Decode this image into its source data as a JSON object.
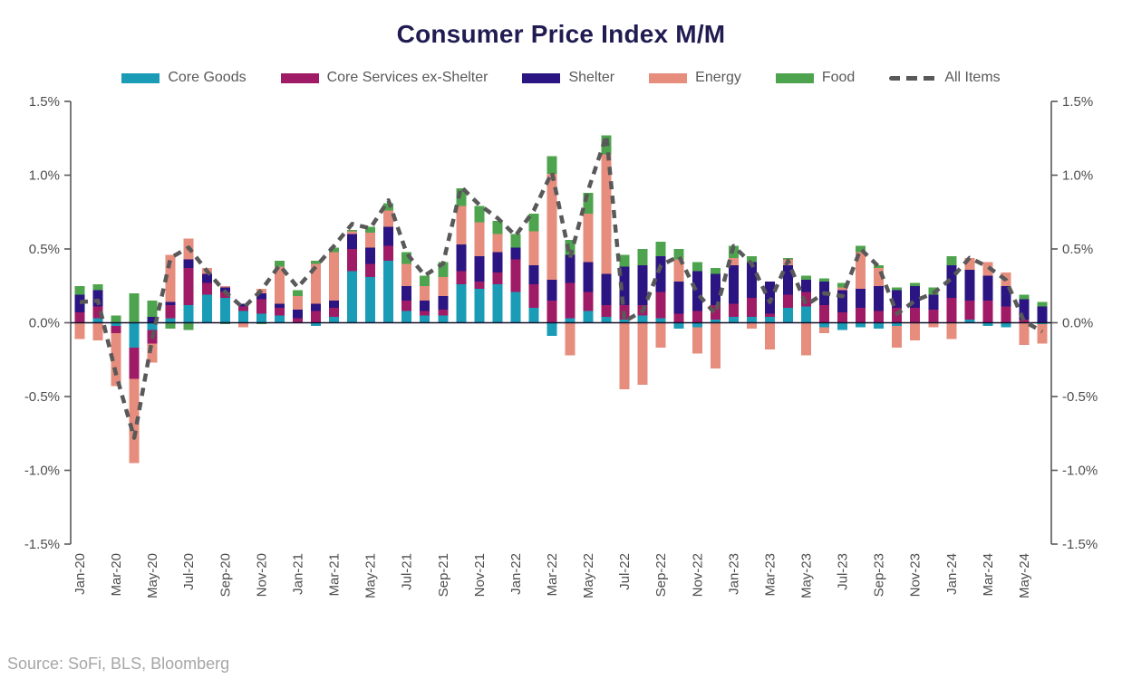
{
  "title": "Consumer Price Index M/M",
  "source": "Source: SoFi, BLS, Bloomberg",
  "legend": {
    "items": [
      {
        "label": "Core Goods",
        "color": "#1a9cb7"
      },
      {
        "label": "Core Services ex-Shelter",
        "color": "#a01b66"
      },
      {
        "label": "Shelter",
        "color": "#2b1582"
      },
      {
        "label": "Energy",
        "color": "#e68d7e"
      },
      {
        "label": "Food",
        "color": "#4ea44e"
      },
      {
        "label": "All Items",
        "color": "#595959",
        "style": "dashed-line"
      }
    ]
  },
  "chart_data": {
    "type": "bar",
    "subtype": "stacked-bars-with-dashed-line-overlay",
    "title": "Consumer Price Index M/M",
    "xlabel": "",
    "ylabel": "",
    "ylim": [
      -1.5,
      1.5
    ],
    "ytick_step": 0.5,
    "ytick_labels": [
      "1.5%",
      "1.0%",
      "0.5%",
      "0.0%",
      "-0.5%",
      "-1.0%",
      "-1.5%"
    ],
    "grid": false,
    "legend_position": "top",
    "x_labels_shown_every": 2,
    "categories": [
      "Jan-20",
      "Feb-20",
      "Mar-20",
      "Apr-20",
      "May-20",
      "Jun-20",
      "Jul-20",
      "Aug-20",
      "Sep-20",
      "Oct-20",
      "Nov-20",
      "Dec-20",
      "Jan-21",
      "Feb-21",
      "Mar-21",
      "Apr-21",
      "May-21",
      "Jun-21",
      "Jul-21",
      "Aug-21",
      "Sep-21",
      "Oct-21",
      "Nov-21",
      "Dec-21",
      "Jan-22",
      "Feb-22",
      "Mar-22",
      "Apr-22",
      "May-22",
      "Jun-22",
      "Jul-22",
      "Aug-22",
      "Sep-22",
      "Oct-22",
      "Nov-22",
      "Dec-22",
      "Jan-23",
      "Feb-23",
      "Mar-23",
      "Apr-23",
      "May-23",
      "Jun-23",
      "Jul-23",
      "Aug-23",
      "Sep-23",
      "Oct-23",
      "Nov-23",
      "Dec-23",
      "Jan-24",
      "Feb-24",
      "Mar-24",
      "Apr-24",
      "May-24",
      "Jun-24"
    ],
    "series": [
      {
        "name": "Core Goods",
        "color": "#1a9cb7",
        "values": [
          0.0,
          0.03,
          -0.02,
          -0.17,
          -0.05,
          0.03,
          0.12,
          0.19,
          0.17,
          0.08,
          0.06,
          0.05,
          0.0,
          -0.02,
          0.04,
          0.35,
          0.31,
          0.42,
          0.08,
          0.05,
          0.05,
          0.26,
          0.23,
          0.26,
          0.21,
          0.1,
          -0.09,
          0.03,
          0.08,
          0.04,
          0.02,
          0.05,
          0.03,
          -0.04,
          -0.03,
          0.02,
          0.04,
          0.04,
          0.04,
          0.1,
          0.11,
          -0.03,
          -0.05,
          -0.03,
          -0.04,
          -0.02,
          0.0,
          0.0,
          0.0,
          0.02,
          -0.02,
          -0.03,
          0.0,
          -0.01
        ]
      },
      {
        "name": "Core Services ex-Shelter",
        "color": "#a01b66",
        "values": [
          0.07,
          0.08,
          -0.05,
          -0.21,
          -0.09,
          0.09,
          0.25,
          0.08,
          0.04,
          0.03,
          0.1,
          0.05,
          0.03,
          0.08,
          0.06,
          0.15,
          0.09,
          0.1,
          0.07,
          0.03,
          0.04,
          0.09,
          0.05,
          0.08,
          0.22,
          0.16,
          0.15,
          0.24,
          0.13,
          0.08,
          0.1,
          0.07,
          0.18,
          0.06,
          0.08,
          0.1,
          0.09,
          0.13,
          0.02,
          0.09,
          0.1,
          0.12,
          0.07,
          0.1,
          0.08,
          0.1,
          0.1,
          0.09,
          0.17,
          0.13,
          0.15,
          0.11,
          0.02,
          0.0
        ]
      },
      {
        "name": "Shelter",
        "color": "#2b1582",
        "values": [
          0.12,
          0.11,
          0.0,
          0.0,
          0.04,
          0.02,
          0.06,
          0.06,
          0.03,
          0.02,
          0.04,
          0.03,
          0.06,
          0.05,
          0.05,
          0.1,
          0.11,
          0.13,
          0.1,
          0.07,
          0.09,
          0.18,
          0.17,
          0.14,
          0.08,
          0.13,
          0.14,
          0.19,
          0.2,
          0.21,
          0.26,
          0.27,
          0.24,
          0.22,
          0.27,
          0.21,
          0.26,
          0.24,
          0.22,
          0.2,
          0.08,
          0.16,
          0.15,
          0.13,
          0.17,
          0.12,
          0.15,
          0.1,
          0.22,
          0.21,
          0.17,
          0.14,
          0.14,
          0.11
        ]
      },
      {
        "name": "Energy",
        "color": "#e68d7e",
        "values": [
          -0.11,
          -0.12,
          -0.36,
          -0.57,
          -0.13,
          0.32,
          0.14,
          0.04,
          0.01,
          -0.03,
          0.03,
          0.25,
          0.09,
          0.27,
          0.33,
          0.02,
          0.1,
          0.11,
          0.15,
          0.1,
          0.13,
          0.26,
          0.23,
          0.12,
          0.0,
          0.23,
          0.72,
          -0.22,
          0.33,
          0.81,
          -0.45,
          -0.42,
          -0.17,
          0.15,
          -0.18,
          -0.31,
          0.05,
          -0.04,
          -0.18,
          0.04,
          -0.22,
          -0.04,
          0.02,
          0.25,
          0.12,
          -0.15,
          -0.12,
          -0.03,
          -0.11,
          0.08,
          0.09,
          0.09,
          -0.15,
          -0.13
        ]
      },
      {
        "name": "Food",
        "color": "#4ea44e",
        "values": [
          0.06,
          0.04,
          0.05,
          0.2,
          0.11,
          -0.04,
          -0.05,
          0.0,
          -0.01,
          0.0,
          -0.01,
          0.04,
          0.04,
          0.02,
          0.03,
          0.01,
          0.04,
          0.05,
          0.08,
          0.07,
          0.1,
          0.12,
          0.11,
          0.09,
          0.09,
          0.12,
          0.12,
          0.1,
          0.14,
          0.13,
          0.08,
          0.11,
          0.1,
          0.07,
          0.06,
          0.04,
          0.08,
          0.04,
          0.0,
          0.01,
          0.03,
          0.02,
          0.03,
          0.04,
          0.02,
          0.02,
          0.02,
          0.05,
          0.06,
          0.0,
          0.0,
          0.0,
          0.03,
          0.03
        ]
      }
    ],
    "line": {
      "name": "All Items",
      "color": "#595959",
      "style": "dashed",
      "values": [
        0.14,
        0.15,
        -0.35,
        -0.78,
        -0.1,
        0.44,
        0.51,
        0.35,
        0.21,
        0.1,
        0.22,
        0.39,
        0.24,
        0.38,
        0.52,
        0.67,
        0.64,
        0.83,
        0.47,
        0.32,
        0.4,
        0.92,
        0.8,
        0.71,
        0.59,
        0.76,
        1.02,
        0.44,
        0.9,
        1.27,
        0.01,
        0.08,
        0.39,
        0.45,
        0.2,
        0.06,
        0.52,
        0.4,
        0.14,
        0.42,
        0.12,
        0.2,
        0.18,
        0.5,
        0.38,
        0.06,
        0.15,
        0.2,
        0.3,
        0.44,
        0.38,
        0.29,
        0.01,
        -0.06
      ]
    }
  }
}
